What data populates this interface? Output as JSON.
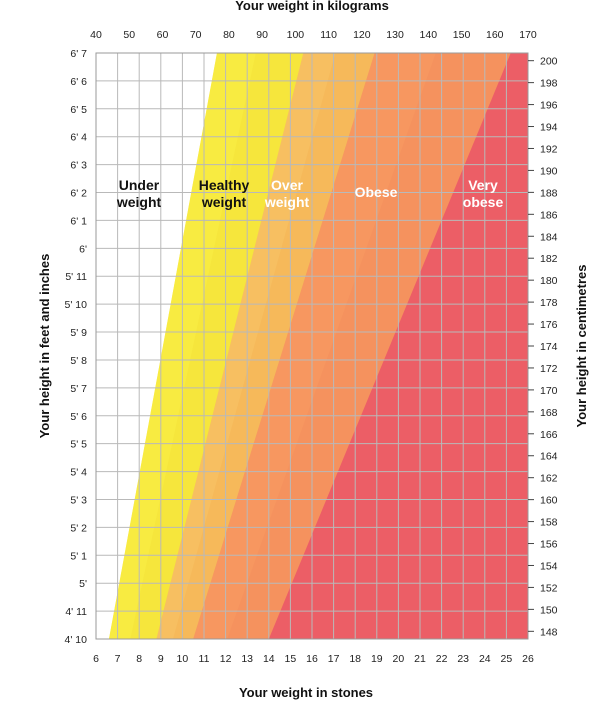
{
  "chart_data": {
    "type": "area",
    "title": "",
    "axes": {
      "x_top": {
        "label": "Your weight in kilograms",
        "unit": "kg",
        "range": [
          40,
          170
        ],
        "ticks": [
          40,
          50,
          60,
          70,
          80,
          90,
          100,
          110,
          120,
          130,
          140,
          150,
          160,
          170
        ]
      },
      "x_bottom": {
        "label": "Your weight in stones",
        "unit": "st",
        "range": [
          6,
          26
        ],
        "ticks": [
          "6",
          "7",
          "8",
          "9",
          "10",
          "11",
          "12",
          "13",
          "14",
          "15",
          "16",
          "17",
          "18",
          "19",
          "20",
          "21",
          "22",
          "23",
          "24",
          "25",
          "26"
        ]
      },
      "y_left": {
        "label": "Your height in feet and inches",
        "range_inches": [
          58,
          79
        ],
        "ticks": [
          "4' 10",
          "4' 11",
          "5'",
          "5' 1",
          "5' 2",
          "5' 3",
          "5' 4",
          "5' 5",
          "5' 6",
          "5' 7",
          "5' 8",
          "5' 9",
          "5' 10",
          "5' 11",
          "6'",
          "6' 1",
          "6' 2",
          "6' 3",
          "6' 4",
          "6' 5",
          "6' 6",
          "6' 7"
        ]
      },
      "y_right": {
        "label": "Your height in centimetres",
        "unit": "cm",
        "range": [
          147.3,
          200.7
        ],
        "ticks": [
          148,
          150,
          152,
          154,
          156,
          158,
          160,
          162,
          164,
          166,
          168,
          170,
          172,
          174,
          176,
          178,
          180,
          182,
          184,
          186,
          188,
          190,
          192,
          194,
          196,
          198,
          200
        ]
      }
    },
    "grid": true,
    "bands": [
      {
        "name": "Under weight",
        "label_lines": [
          "Under",
          "weight"
        ],
        "color": "#ffffff",
        "text_color": "#111111"
      },
      {
        "name": "Healthy weight",
        "label_lines": [
          "Healthy",
          "weight"
        ],
        "color": "#f6e63c",
        "text_color": "#111111"
      },
      {
        "name": "Over weight",
        "label_lines": [
          "Over",
          "weight"
        ],
        "color": "#f6b95a",
        "text_color": "#ffffff"
      },
      {
        "name": "Obese",
        "label_lines": [
          "Obese"
        ],
        "color": "#f5925e",
        "text_color": "#ffffff"
      },
      {
        "name": "Very obese",
        "label_lines": [
          "Very",
          "obese"
        ],
        "color": "#ec5e66",
        "text_color": "#ffffff"
      }
    ],
    "boundaries": [
      {
        "between": [
          "Under weight",
          "Healthy weight"
        ],
        "bottom_stones": 6.6,
        "top_stones": 11.6
      },
      {
        "between": [
          "Healthy weight",
          "Over weight"
        ],
        "bottom_stones": 8.8,
        "top_stones": 15.6
      },
      {
        "between": [
          "Over weight",
          "Obese"
        ],
        "bottom_stones": 10.5,
        "top_stones": 18.9
      },
      {
        "between": [
          "Obese",
          "Very obese"
        ],
        "bottom_stones": 14.0,
        "top_stones": 25.2
      }
    ],
    "band_shading": {
      "Healthy weight": {
        "highlight": "#f9ee46"
      },
      "Over weight": {
        "highlight": "#f8c467"
      },
      "Obese": {
        "highlight": "#f79b63"
      }
    }
  }
}
